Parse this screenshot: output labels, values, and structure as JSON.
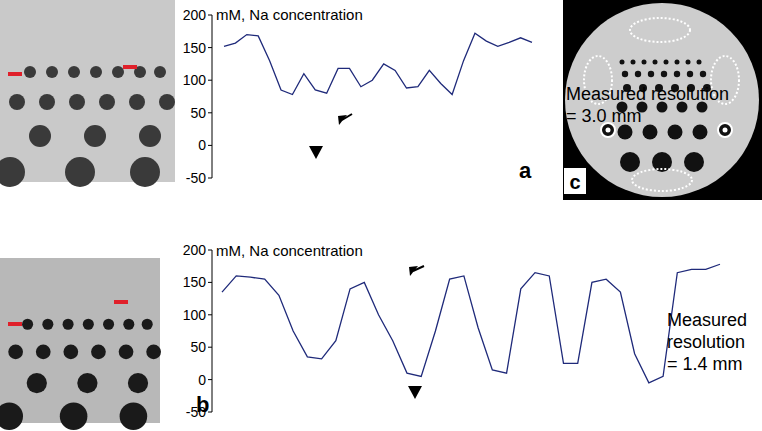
{
  "chart_data": [
    {
      "type": "line",
      "panel_label": "a",
      "ylabel": "mM, Na concentration",
      "annotation": [
        "Measured resolution",
        "= 3.0 mm"
      ],
      "x": [
        0,
        1,
        2,
        3,
        4,
        5,
        6,
        7,
        8,
        9,
        10,
        11,
        12,
        13,
        14,
        15,
        16,
        17,
        18,
        19,
        20,
        21,
        22,
        23,
        24,
        25,
        26,
        27
      ],
      "values": [
        152,
        157,
        170,
        168,
        130,
        85,
        78,
        110,
        85,
        80,
        118,
        118,
        90,
        100,
        125,
        115,
        88,
        90,
        115,
        95,
        78,
        130,
        172,
        160,
        152,
        158,
        165,
        158
      ],
      "color": "#1f2a7a",
      "xlim": [
        0,
        27
      ],
      "ylim": [
        -50,
        200
      ],
      "yticks": [
        -50,
        0,
        50,
        100,
        150,
        200
      ],
      "tick_labels": "y",
      "grid": false
    },
    {
      "type": "line",
      "panel_label": "b",
      "ylabel": "mM, Na concentration",
      "annotation": [
        "Measured",
        "resolution",
        "= 1.4 mm"
      ],
      "x": [
        0,
        1,
        2,
        3,
        4,
        5,
        6,
        7,
        8,
        9,
        10,
        11,
        12,
        13,
        14,
        15,
        16,
        17,
        18,
        19,
        20,
        21,
        22,
        23,
        24,
        25,
        26,
        27,
        28,
        29,
        30,
        31,
        32,
        33,
        34,
        35
      ],
      "values": [
        135,
        160,
        158,
        155,
        130,
        75,
        35,
        32,
        60,
        140,
        150,
        100,
        60,
        10,
        5,
        75,
        155,
        160,
        80,
        15,
        10,
        140,
        165,
        160,
        25,
        25,
        150,
        155,
        135,
        40,
        -5,
        5,
        165,
        170,
        170,
        178
      ],
      "color": "#1f2a7a",
      "xlim": [
        0,
        35
      ],
      "ylim": [
        -50,
        200
      ],
      "yticks": [
        -50,
        0,
        50,
        100,
        150,
        200
      ],
      "tick_labels": "y",
      "grid": false
    }
  ],
  "panels": {
    "c": {
      "label": "c"
    }
  }
}
